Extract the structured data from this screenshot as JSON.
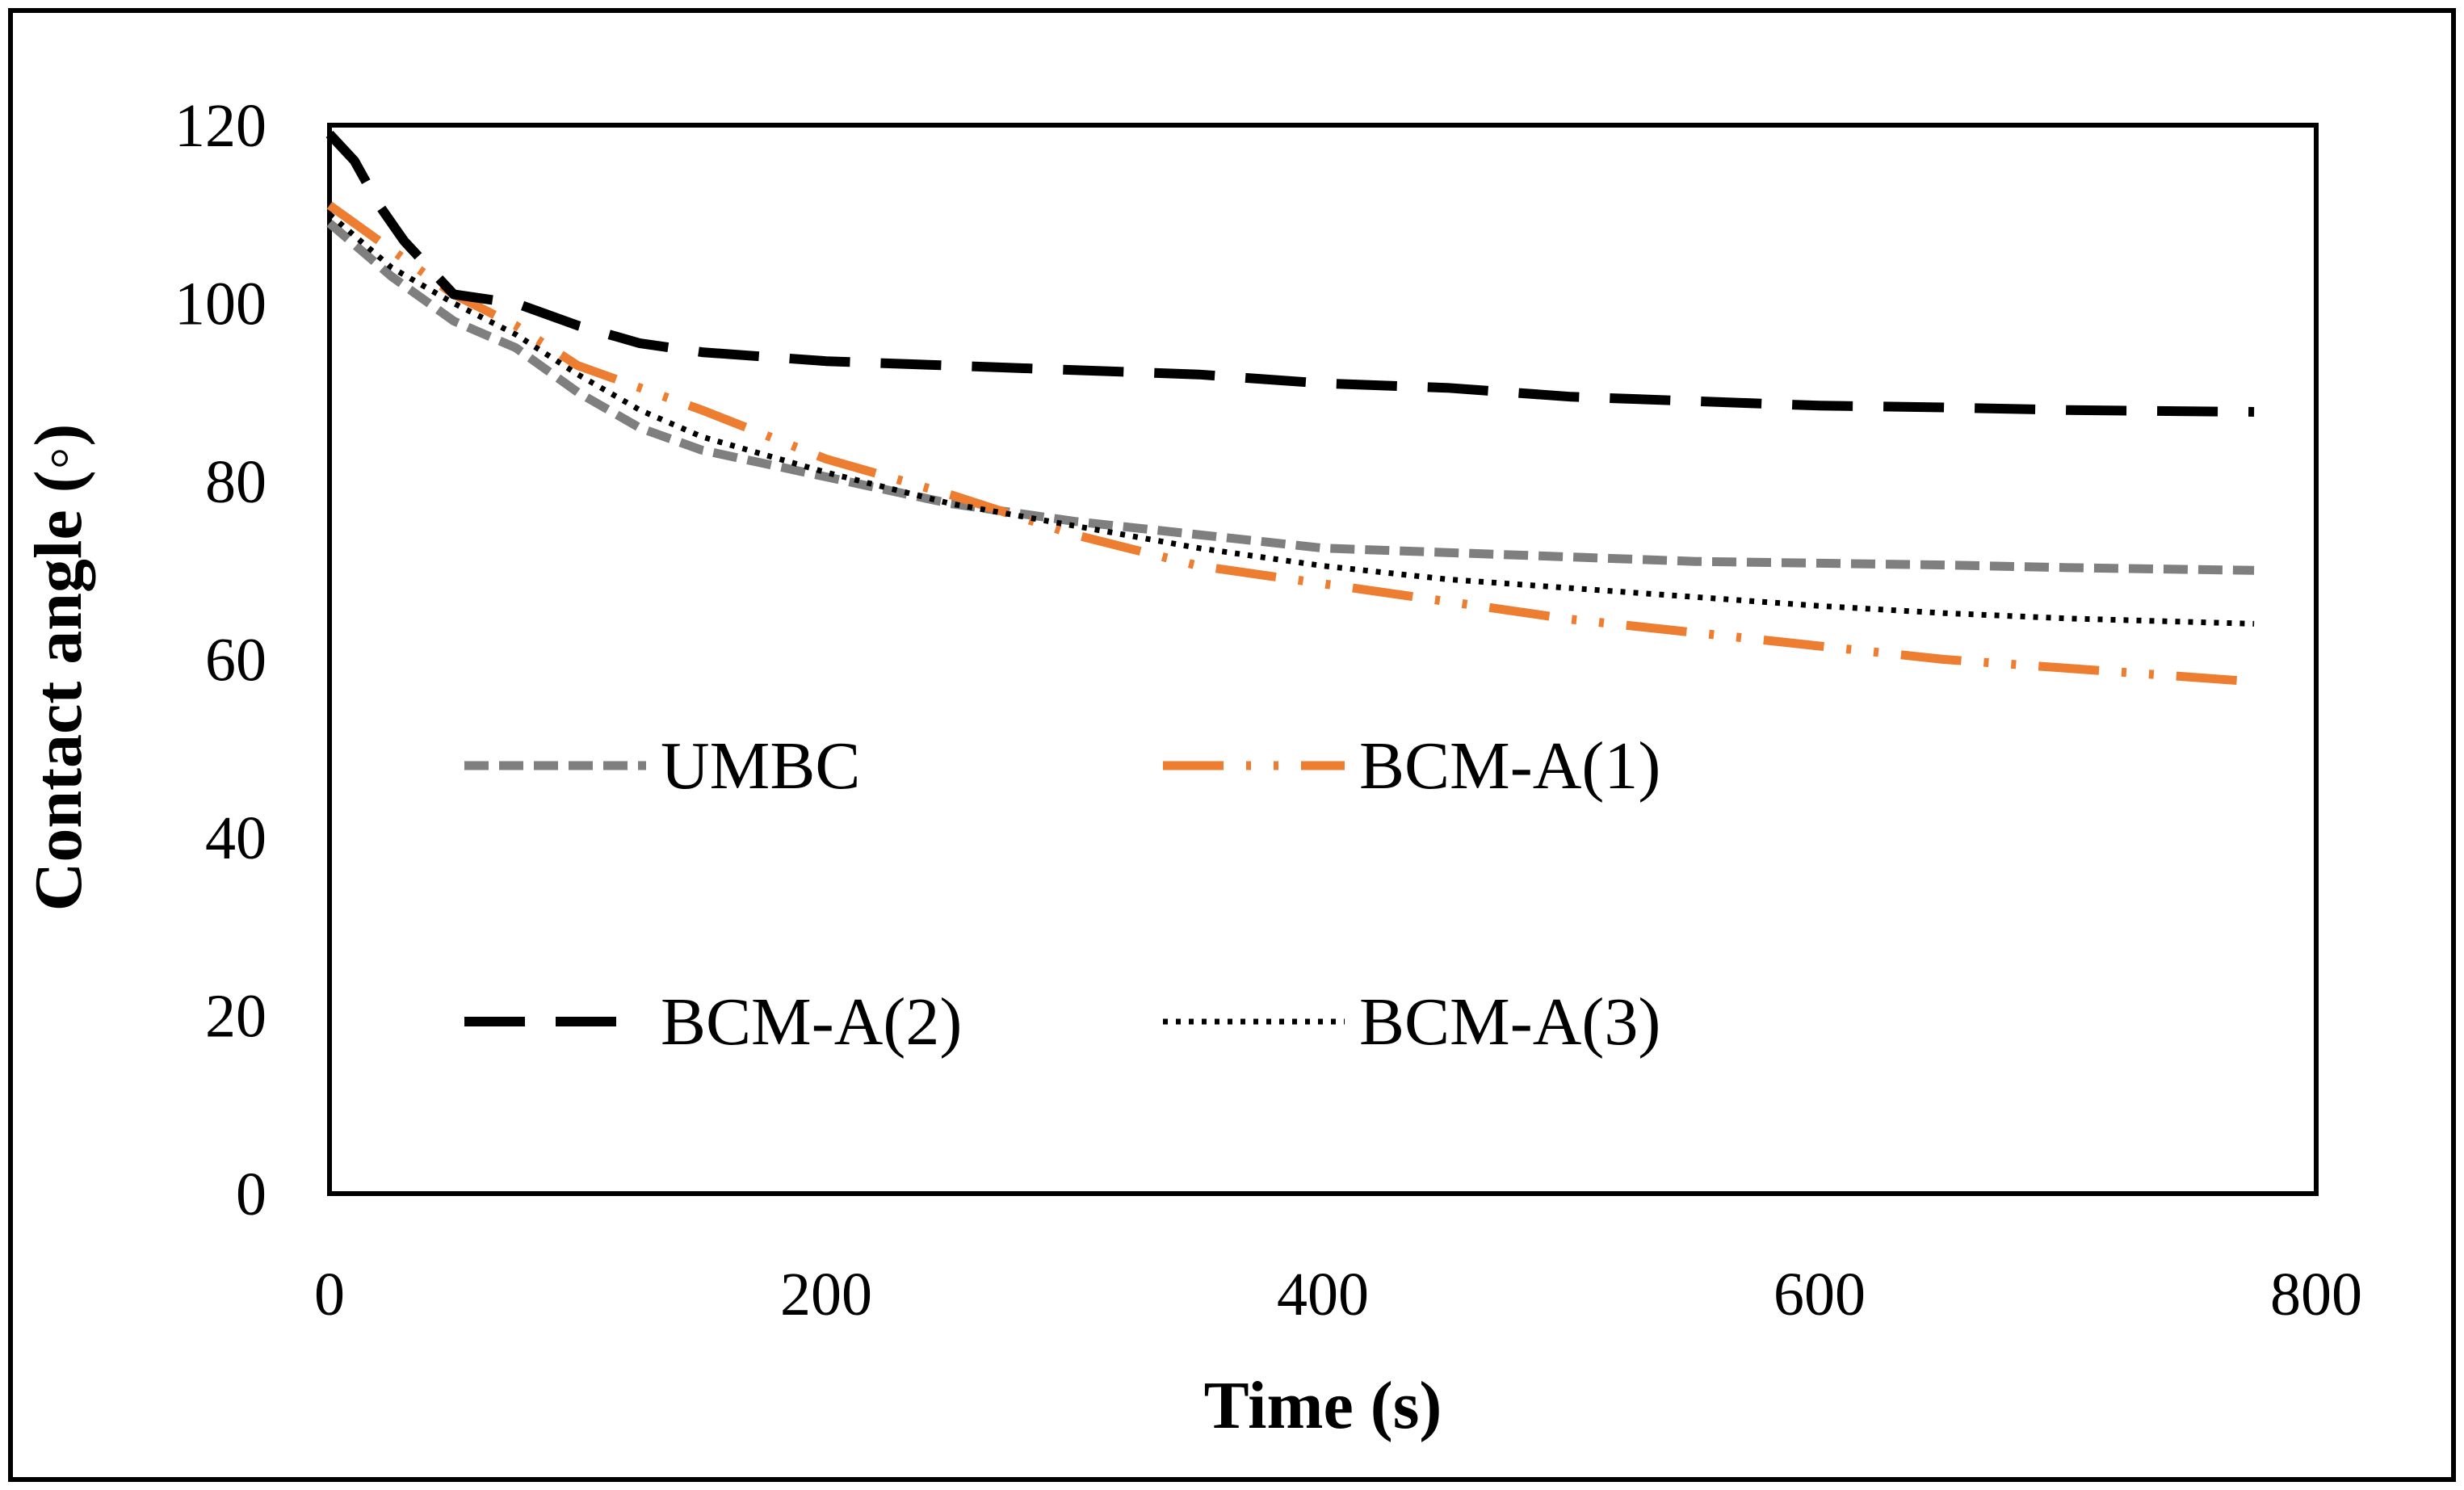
{
  "chart_data": {
    "type": "line",
    "title": "",
    "xlabel": "Time (s)",
    "ylabel": "Contact angle (◦)",
    "xlim": [
      0,
      800
    ],
    "ylim": [
      0,
      120
    ],
    "xticks": [
      0,
      200,
      400,
      600,
      800
    ],
    "yticks": [
      0,
      20,
      40,
      60,
      80,
      100,
      120
    ],
    "xtick_labels": [
      "0",
      "200",
      "400",
      "600",
      "800"
    ],
    "ytick_labels": [
      "0",
      "20",
      "40",
      "60",
      "80",
      "100",
      "120"
    ],
    "grid": false,
    "legend_position": "inside-center",
    "series": [
      {
        "name": "UMBC",
        "color": "#7f7f7f",
        "style": "dashed",
        "x": [
          0,
          25,
          50,
          75,
          100,
          125,
          150,
          200,
          250,
          300,
          350,
          400,
          450,
          500,
          550,
          600,
          650,
          700,
          775
        ],
        "y": [
          109,
          103,
          98,
          95,
          90,
          86,
          83.5,
          80.5,
          77.5,
          75.5,
          74,
          72.5,
          72,
          71.5,
          71,
          70.8,
          70.6,
          70.3,
          70
        ]
      },
      {
        "name": "BCM-A(1)",
        "color": "#ed7d31",
        "style": "dash-dot-dot",
        "x": [
          0,
          25,
          50,
          75,
          100,
          125,
          150,
          200,
          250,
          300,
          350,
          400,
          450,
          500,
          550,
          600,
          650,
          700,
          775
        ],
        "y": [
          111,
          106,
          101,
          97.5,
          93,
          90.5,
          88,
          82.5,
          78.5,
          74,
          70.5,
          68.5,
          66.5,
          64.5,
          63,
          61.5,
          60,
          59,
          57.5
        ]
      },
      {
        "name": "BCM-A(2)",
        "color": "#000000",
        "style": "long-dash",
        "x": [
          0,
          10,
          20,
          30,
          40,
          50,
          75,
          100,
          125,
          150,
          200,
          250,
          300,
          350,
          400,
          450,
          500,
          550,
          600,
          650,
          700,
          775
        ],
        "y": [
          119,
          116,
          111,
          107,
          104,
          101,
          100,
          97.5,
          95.5,
          94.5,
          93.5,
          93,
          92.5,
          92,
          91,
          90.5,
          89.5,
          89,
          88.5,
          88.3,
          88,
          87.8
        ]
      },
      {
        "name": "BCM-A(3)",
        "color": "#000000",
        "style": "dotted",
        "x": [
          0,
          25,
          50,
          75,
          100,
          125,
          150,
          200,
          250,
          300,
          350,
          400,
          450,
          500,
          550,
          600,
          650,
          700,
          775
        ],
        "y": [
          110,
          104,
          100,
          96.5,
          92,
          88,
          85,
          81,
          77.5,
          75,
          72.5,
          70.5,
          69,
          68,
          67,
          66,
          65.2,
          64.6,
          64
        ]
      }
    ]
  }
}
